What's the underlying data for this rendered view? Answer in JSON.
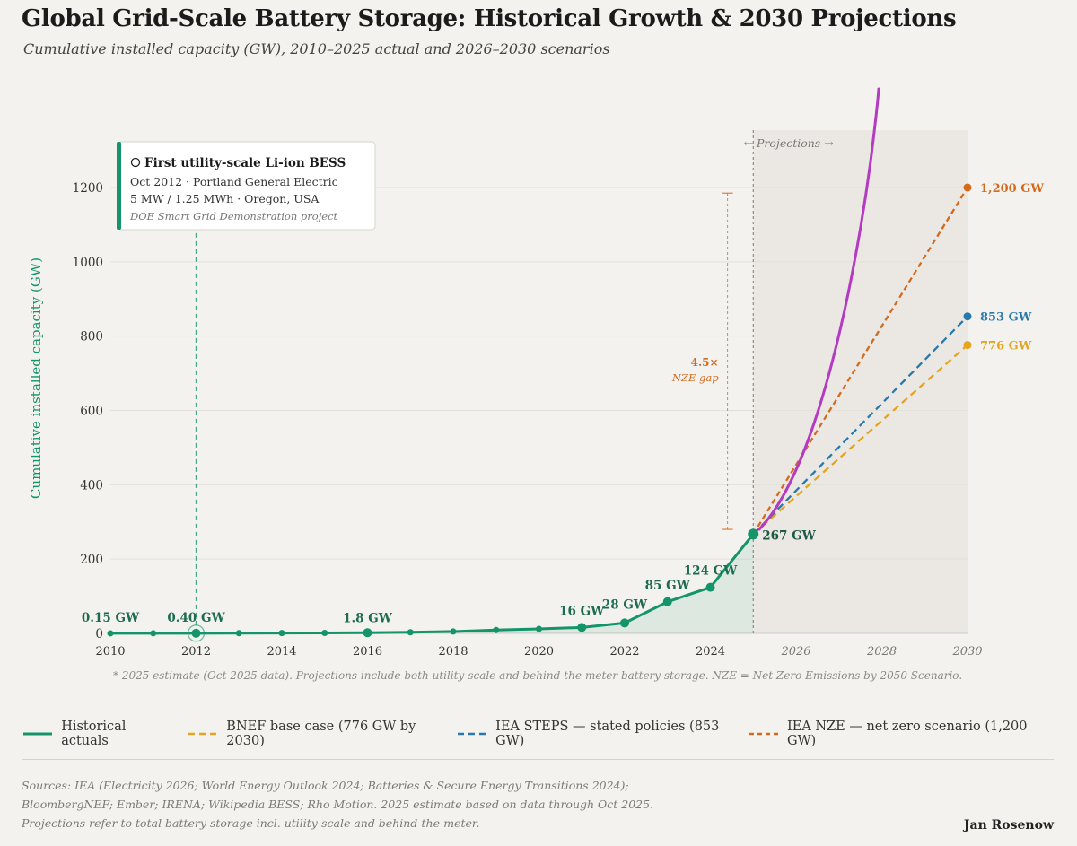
{
  "header": {
    "title": "Global Grid-Scale Battery Storage: Historical Growth & 2030 Projections",
    "subtitle": "Cumulative installed capacity (GW), 2010–2025 actual and 2026–2030 scenarios"
  },
  "colors": {
    "historical": "#13946b",
    "bnef": "#e3a420",
    "steps": "#2879ad",
    "nze": "#d46a1e",
    "curve": "#b43bc1",
    "grid": "#e3e0da",
    "background": "#f4f2ee"
  },
  "annotation": {
    "title": "First utility-scale Li-ion BESS",
    "line1": "Oct 2012 · Portland General Electric",
    "line2": "5 MW / 1.25 MWh · Oregon, USA",
    "line3": "DOE Smart Grid Demonstration project"
  },
  "chart_data": {
    "type": "line",
    "title": "Global Grid-Scale Battery Storage: Historical Growth & 2030 Projections",
    "xlabel": "",
    "ylabel": "Cumulative installed capacity (GW)",
    "xlim": [
      2010,
      2030
    ],
    "ylim": [
      0,
      1350
    ],
    "x_ticks": [
      2010,
      2012,
      2014,
      2016,
      2018,
      2020,
      2022,
      2024,
      2026,
      2028,
      2030
    ],
    "y_ticks": [
      0,
      200,
      400,
      600,
      800,
      1000,
      1200
    ],
    "projection_start": 2025,
    "projection_label": "← Projections →",
    "historical": {
      "name": "Historical actuals",
      "x": [
        2010,
        2011,
        2012,
        2013,
        2014,
        2015,
        2016,
        2017,
        2018,
        2019,
        2020,
        2021,
        2022,
        2023,
        2024,
        2025
      ],
      "values": [
        0.15,
        0.2,
        0.4,
        0.6,
        0.9,
        1.2,
        1.8,
        3,
        5,
        9,
        12,
        16,
        28,
        85,
        124,
        267
      ]
    },
    "data_labels": [
      {
        "x": 2010,
        "y": 0.15,
        "text": "0.15 GW"
      },
      {
        "x": 2012,
        "y": 0.4,
        "text": "0.40 GW"
      },
      {
        "x": 2016,
        "y": 1.8,
        "text": "1.8 GW"
      },
      {
        "x": 2021,
        "y": 16,
        "text": "16 GW"
      },
      {
        "x": 2022,
        "y": 28,
        "text": "28 GW"
      },
      {
        "x": 2023,
        "y": 85,
        "text": "85 GW"
      },
      {
        "x": 2024,
        "y": 124,
        "text": "124 GW"
      },
      {
        "x": 2025,
        "y": 267,
        "text": "267 GW"
      }
    ],
    "series": [
      {
        "name": "BNEF base case (776 GW by 2030)",
        "key": "bnef",
        "x": [
          2025,
          2030
        ],
        "values": [
          267,
          776
        ],
        "end_label": "776 GW"
      },
      {
        "name": "IEA STEPS — stated policies (853 GW)",
        "key": "steps",
        "x": [
          2025,
          2030
        ],
        "values": [
          267,
          853
        ],
        "end_label": "853 GW"
      },
      {
        "name": "IEA NZE — net zero scenario (1,200 GW)",
        "key": "nze",
        "x": [
          2025,
          2030
        ],
        "values": [
          267,
          1200
        ],
        "end_label": "1,200 GW"
      }
    ],
    "gap_annotation": {
      "x": 2024.4,
      "y_from": 280,
      "y_to": 1185,
      "label": "4.5×",
      "sublabel": "NZE gap"
    }
  },
  "footnote": "* 2025 estimate (Oct 2025 data). Projections include both utility-scale and behind-the-meter battery storage. NZE = Net Zero Emissions by 2050 Scenario.",
  "legend": {
    "historical": "Historical actuals",
    "bnef": "BNEF base case (776 GW by 2030)",
    "steps": "IEA STEPS — stated policies (853 GW)",
    "nze": "IEA NZE — net zero scenario (1,200 GW)"
  },
  "sources": {
    "line1": "Sources: IEA (Electricity 2026; World Energy Outlook 2024; Batteries & Secure Energy Transitions 2024);",
    "line2": "BloombergNEF; Ember; IRENA; Wikipedia BESS; Rho Motion. 2025 estimate based on data through Oct 2025.",
    "line3": "Projections refer to total battery storage incl. utility-scale and behind-the-meter."
  },
  "author": "Jan Rosenow"
}
